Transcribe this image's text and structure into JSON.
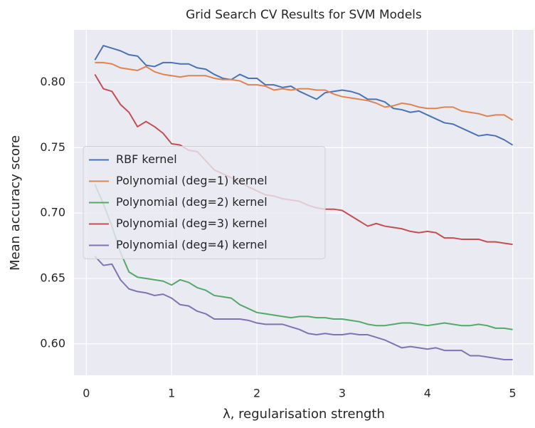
{
  "chart_data": {
    "type": "line",
    "title": "Grid Search CV Results for SVM Models",
    "x_label": "λ, regularisation strength",
    "y_label": "Mean accuracy score",
    "x": [
      0.1,
      0.2,
      0.3,
      0.4,
      0.5,
      0.6,
      0.7,
      0.8,
      0.9,
      1.0,
      1.1,
      1.2,
      1.3,
      1.4,
      1.5,
      1.6,
      1.7,
      1.8,
      1.9,
      2.0,
      2.1,
      2.2,
      2.3,
      2.4,
      2.5,
      2.6,
      2.7,
      2.8,
      2.9,
      3.0,
      3.1,
      3.2,
      3.3,
      3.4,
      3.5,
      3.6,
      3.7,
      3.8,
      3.9,
      4.0,
      4.1,
      4.2,
      4.3,
      4.4,
      4.5,
      4.6,
      4.7,
      4.8,
      4.9,
      5.0
    ],
    "series": [
      {
        "name": "RBF kernel",
        "color": "#4c72b0",
        "values": [
          0.817,
          0.828,
          0.826,
          0.824,
          0.821,
          0.82,
          0.813,
          0.812,
          0.815,
          0.815,
          0.814,
          0.814,
          0.811,
          0.81,
          0.806,
          0.803,
          0.802,
          0.806,
          0.803,
          0.803,
          0.798,
          0.798,
          0.796,
          0.797,
          0.793,
          0.79,
          0.787,
          0.792,
          0.793,
          0.794,
          0.793,
          0.791,
          0.787,
          0.787,
          0.785,
          0.78,
          0.779,
          0.777,
          0.778,
          0.775,
          0.772,
          0.769,
          0.768,
          0.765,
          0.762,
          0.759,
          0.76,
          0.759,
          0.756,
          0.752
        ]
      },
      {
        "name": "Polynomial (deg=1) kernel",
        "color": "#dd8452",
        "values": [
          0.815,
          0.815,
          0.814,
          0.811,
          0.81,
          0.809,
          0.812,
          0.808,
          0.806,
          0.805,
          0.804,
          0.805,
          0.805,
          0.805,
          0.803,
          0.802,
          0.802,
          0.801,
          0.798,
          0.798,
          0.797,
          0.794,
          0.795,
          0.794,
          0.795,
          0.795,
          0.794,
          0.794,
          0.791,
          0.789,
          0.788,
          0.787,
          0.786,
          0.784,
          0.781,
          0.782,
          0.784,
          0.783,
          0.781,
          0.78,
          0.78,
          0.781,
          0.781,
          0.778,
          0.777,
          0.776,
          0.774,
          0.775,
          0.775,
          0.771
        ]
      },
      {
        "name": "Polynomial (deg=2) kernel",
        "color": "#55a868",
        "values": [
          0.722,
          0.707,
          0.69,
          0.67,
          0.655,
          0.651,
          0.65,
          0.649,
          0.648,
          0.645,
          0.649,
          0.647,
          0.643,
          0.641,
          0.637,
          0.636,
          0.635,
          0.63,
          0.627,
          0.624,
          0.623,
          0.622,
          0.621,
          0.62,
          0.621,
          0.621,
          0.62,
          0.62,
          0.619,
          0.619,
          0.618,
          0.617,
          0.615,
          0.614,
          0.614,
          0.615,
          0.616,
          0.616,
          0.615,
          0.614,
          0.615,
          0.616,
          0.615,
          0.614,
          0.614,
          0.615,
          0.614,
          0.612,
          0.612,
          0.611
        ]
      },
      {
        "name": "Polynomial (deg=3) kernel",
        "color": "#c44e52",
        "values": [
          0.806,
          0.795,
          0.793,
          0.783,
          0.777,
          0.766,
          0.77,
          0.766,
          0.761,
          0.753,
          0.752,
          0.748,
          0.747,
          0.74,
          0.733,
          0.73,
          0.727,
          0.724,
          0.72,
          0.717,
          0.714,
          0.713,
          0.711,
          0.71,
          0.709,
          0.706,
          0.704,
          0.703,
          0.703,
          0.702,
          0.698,
          0.694,
          0.69,
          0.692,
          0.69,
          0.689,
          0.688,
          0.686,
          0.685,
          0.686,
          0.685,
          0.681,
          0.681,
          0.68,
          0.68,
          0.68,
          0.678,
          0.678,
          0.677,
          0.676
        ]
      },
      {
        "name": "Polynomial (deg=4) kernel",
        "color": "#8172b3",
        "values": [
          0.667,
          0.66,
          0.661,
          0.649,
          0.642,
          0.64,
          0.639,
          0.637,
          0.638,
          0.635,
          0.63,
          0.629,
          0.625,
          0.623,
          0.619,
          0.619,
          0.619,
          0.619,
          0.618,
          0.616,
          0.615,
          0.615,
          0.615,
          0.613,
          0.611,
          0.608,
          0.607,
          0.608,
          0.607,
          0.607,
          0.608,
          0.607,
          0.607,
          0.605,
          0.603,
          0.6,
          0.597,
          0.598,
          0.597,
          0.596,
          0.597,
          0.595,
          0.595,
          0.595,
          0.591,
          0.591,
          0.59,
          0.589,
          0.588,
          0.588
        ]
      }
    ],
    "xlim": [
      -0.145,
      5.245
    ],
    "ylim": [
      0.576,
      0.84
    ],
    "xticks": [
      0,
      1,
      2,
      3,
      4,
      5
    ],
    "yticks": [
      {
        "value": 0.6,
        "label": "0.60"
      },
      {
        "value": 0.65,
        "label": "0.65"
      },
      {
        "value": 0.7,
        "label": "0.70"
      },
      {
        "value": 0.75,
        "label": "0.75"
      },
      {
        "value": 0.8,
        "label": "0.80"
      }
    ],
    "grid": true,
    "legend": "center left"
  }
}
